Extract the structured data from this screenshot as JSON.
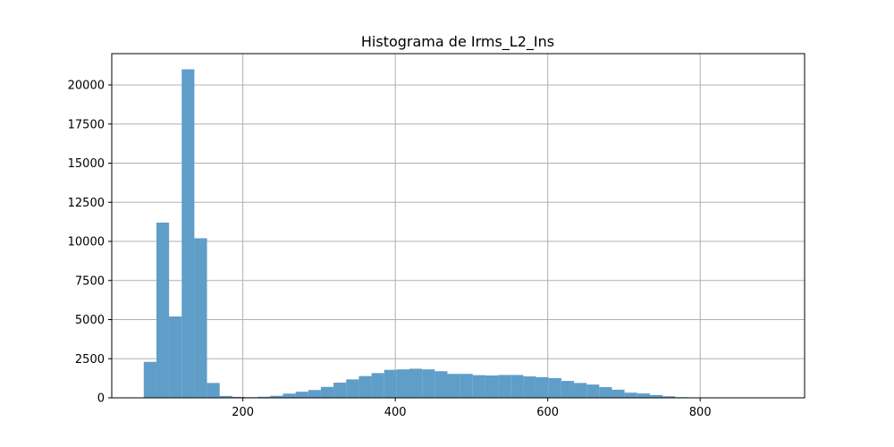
{
  "chart_data": {
    "type": "bar",
    "title": "Histograma de Irms_L2_Ins",
    "xlabel": "",
    "ylabel": "",
    "xlim": [
      28,
      937
    ],
    "ylim": [
      0,
      22000
    ],
    "xticks": [
      200,
      400,
      600,
      800
    ],
    "xtick_labels": [
      "200",
      "400",
      "600",
      "800"
    ],
    "yticks": [
      0,
      2500,
      5000,
      7500,
      10000,
      12500,
      15000,
      17500,
      20000
    ],
    "ytick_labels": [
      "0",
      "2500",
      "5000",
      "7500",
      "10000",
      "12500",
      "15000",
      "17500",
      "20000"
    ],
    "grid": true,
    "bar_color": "#5f9ec9",
    "bin_start": 70,
    "bin_width": 16.6,
    "counts": [
      2300,
      11200,
      5200,
      21000,
      10200,
      950,
      120,
      60,
      40,
      70,
      130,
      270,
      390,
      500,
      700,
      970,
      1180,
      1390,
      1580,
      1790,
      1820,
      1860,
      1820,
      1700,
      1530,
      1530,
      1450,
      1430,
      1460,
      1460,
      1370,
      1320,
      1260,
      1080,
      950,
      850,
      690,
      520,
      330,
      280,
      180,
      100,
      40,
      10,
      6,
      3,
      2,
      2,
      1,
      1
    ]
  }
}
